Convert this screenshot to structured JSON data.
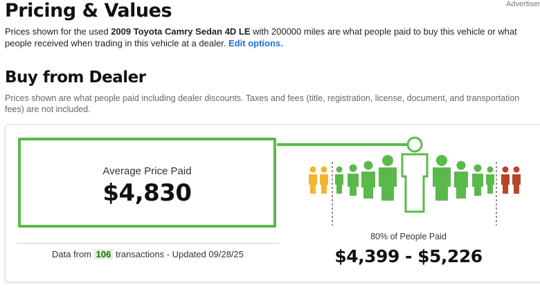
{
  "ad_label": "Advertisement",
  "page_title": "Pricing & Values",
  "intro": {
    "prefix": "Prices shown for the used ",
    "vehicle": "2009 Toyota Camry Sedan 4D LE",
    "middle": " with 200000 miles are what people paid to buy this vehicle or what people received when trading in this vehicle at a dealer. ",
    "edit_link": "Edit options."
  },
  "section_title": "Buy from Dealer",
  "section_note": "Prices shown are what people paid including dealer discounts. Taxes and fees (title, registration, license, document, and transportation fees) are not included.",
  "average": {
    "label": "Average Price Paid",
    "value": "$4,830"
  },
  "transactions": {
    "prefix": "Data from ",
    "count": "106",
    "suffix": " transactions - Updated 09/28/25"
  },
  "distribution": {
    "label": "80% of People Paid",
    "range": "$4,399 - $5,226"
  },
  "colors": {
    "accent_green": "#5ab94a",
    "low_yellow": "#f2b52d",
    "high_red": "#b8462a",
    "link_blue": "#1e6fd9"
  }
}
